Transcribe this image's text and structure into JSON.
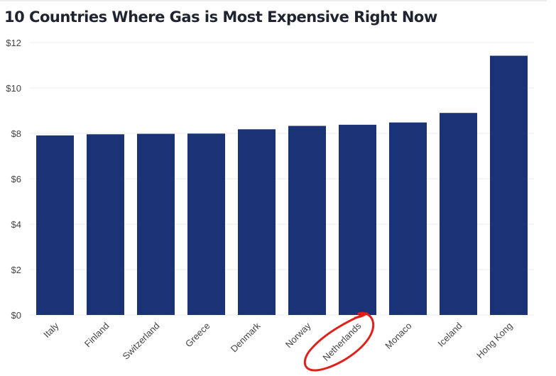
{
  "chart_data": {
    "type": "bar",
    "title": "10 Countries Where Gas is Most Expensive Right Now",
    "xlabel": "",
    "ylabel": "",
    "categories": [
      "Italy",
      "Finland",
      "Switzerland",
      "Greece",
      "Denmark",
      "Norway",
      "Netherlands",
      "Monaco",
      "Iceland",
      "Hong Kong"
    ],
    "values": [
      7.91,
      7.96,
      7.98,
      7.99,
      8.18,
      8.33,
      8.38,
      8.48,
      8.9,
      11.42
    ],
    "ylim": [
      0,
      12
    ],
    "yticks": [
      0,
      2,
      4,
      6,
      8,
      10,
      12
    ],
    "ytick_labels": [
      "$0",
      "$2",
      "$4",
      "$6",
      "$8",
      "$10",
      "$12"
    ],
    "grid": true,
    "bar_color": "#1a3276",
    "annotation": {
      "type": "hand-drawn circle",
      "target": "Netherlands",
      "color": "#e0201b"
    }
  }
}
